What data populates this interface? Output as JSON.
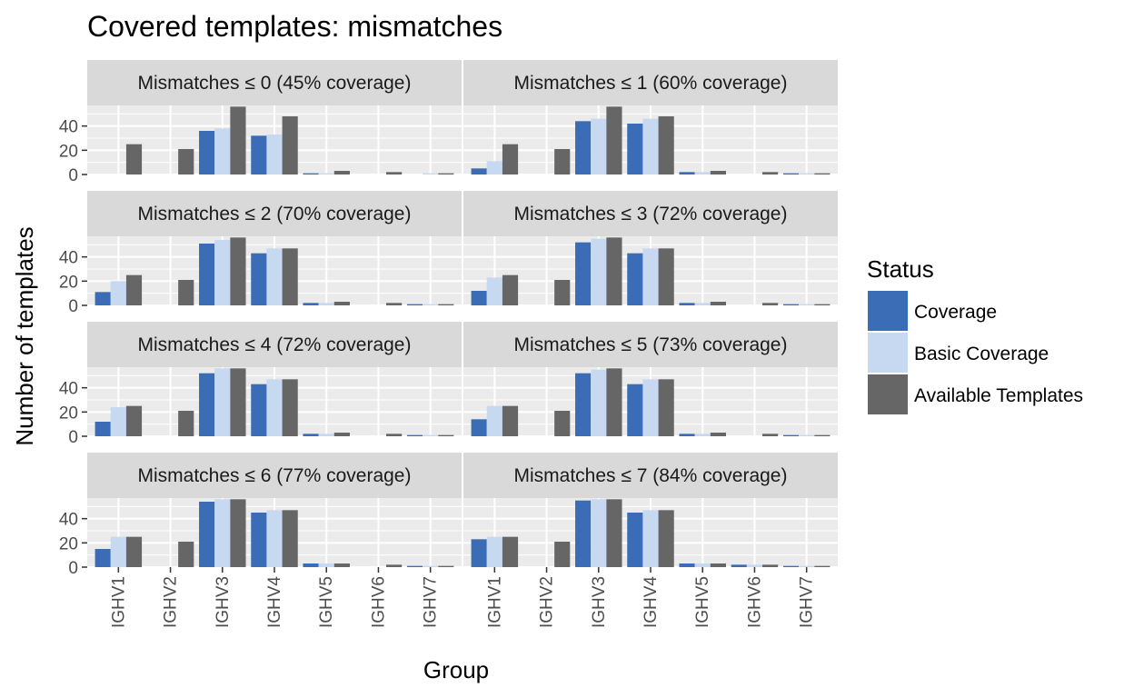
{
  "chart_data": {
    "type": "bar",
    "title": "Covered templates: mismatches",
    "xlabel": "Group",
    "ylabel": "Number of templates",
    "categories": [
      "IGHV1",
      "IGHV2",
      "IGHV3",
      "IGHV4",
      "IGHV5",
      "IGHV6",
      "IGHV7"
    ],
    "ylim": [
      0,
      57
    ],
    "yticks": [
      0,
      20,
      40
    ],
    "grid": true,
    "legend": {
      "title": "Status",
      "placement": "right",
      "entries": [
        {
          "name": "Coverage",
          "color": "#3a6db5"
        },
        {
          "name": "Basic Coverage",
          "color": "#c6d9f0"
        },
        {
          "name": "Available Templates",
          "color": "#666666"
        }
      ]
    },
    "panels": [
      {
        "label": "Mismatches ≤ 0 (45% coverage)",
        "series": [
          {
            "name": "Coverage",
            "values": [
              0,
              0,
              36,
              32,
              1,
              0,
              0
            ]
          },
          {
            "name": "Basic Coverage",
            "values": [
              0,
              0,
              38,
              33,
              1,
              0,
              1
            ]
          },
          {
            "name": "Available Templates",
            "values": [
              25,
              21,
              56,
              48,
              3,
              2,
              1
            ]
          }
        ]
      },
      {
        "label": "Mismatches ≤ 1 (60% coverage)",
        "series": [
          {
            "name": "Coverage",
            "values": [
              5,
              0,
              44,
              42,
              2,
              0,
              1
            ]
          },
          {
            "name": "Basic Coverage",
            "values": [
              11,
              0,
              46,
              46,
              2,
              0,
              1
            ]
          },
          {
            "name": "Available Templates",
            "values": [
              25,
              21,
              56,
              48,
              3,
              2,
              1
            ]
          }
        ]
      },
      {
        "label": "Mismatches ≤ 2 (70% coverage)",
        "series": [
          {
            "name": "Coverage",
            "values": [
              11,
              0,
              51,
              43,
              2,
              0,
              1
            ]
          },
          {
            "name": "Basic Coverage",
            "values": [
              20,
              0,
              54,
              47,
              2,
              0,
              1
            ]
          },
          {
            "name": "Available Templates",
            "values": [
              25,
              21,
              56,
              47,
              3,
              2,
              1
            ]
          }
        ]
      },
      {
        "label": "Mismatches ≤ 3 (72% coverage)",
        "series": [
          {
            "name": "Coverage",
            "values": [
              12,
              0,
              52,
              43,
              2,
              0,
              1
            ]
          },
          {
            "name": "Basic Coverage",
            "values": [
              23,
              0,
              55,
              47,
              2,
              0,
              1
            ]
          },
          {
            "name": "Available Templates",
            "values": [
              25,
              21,
              56,
              47,
              3,
              2,
              1
            ]
          }
        ]
      },
      {
        "label": "Mismatches ≤ 4 (72% coverage)",
        "series": [
          {
            "name": "Coverage",
            "values": [
              12,
              0,
              52,
              43,
              2,
              0,
              1
            ]
          },
          {
            "name": "Basic Coverage",
            "values": [
              24,
              0,
              56,
              47,
              2,
              0,
              1
            ]
          },
          {
            "name": "Available Templates",
            "values": [
              25,
              21,
              56,
              47,
              3,
              2,
              1
            ]
          }
        ]
      },
      {
        "label": "Mismatches ≤ 5 (73% coverage)",
        "series": [
          {
            "name": "Coverage",
            "values": [
              14,
              0,
              52,
              43,
              2,
              0,
              1
            ]
          },
          {
            "name": "Basic Coverage",
            "values": [
              25,
              0,
              55,
              47,
              2,
              0,
              1
            ]
          },
          {
            "name": "Available Templates",
            "values": [
              25,
              21,
              56,
              47,
              3,
              2,
              1
            ]
          }
        ]
      },
      {
        "label": "Mismatches ≤ 6 (77% coverage)",
        "series": [
          {
            "name": "Coverage",
            "values": [
              15,
              0,
              54,
              45,
              3,
              0,
              1
            ]
          },
          {
            "name": "Basic Coverage",
            "values": [
              25,
              0,
              56,
              47,
              3,
              0,
              1
            ]
          },
          {
            "name": "Available Templates",
            "values": [
              25,
              21,
              56,
              47,
              3,
              2,
              1
            ]
          }
        ]
      },
      {
        "label": "Mismatches ≤ 7 (84% coverage)",
        "series": [
          {
            "name": "Coverage",
            "values": [
              23,
              0,
              55,
              45,
              3,
              2,
              1
            ]
          },
          {
            "name": "Basic Coverage",
            "values": [
              25,
              0,
              56,
              47,
              3,
              2,
              1
            ]
          },
          {
            "name": "Available Templates",
            "values": [
              25,
              21,
              56,
              47,
              3,
              2,
              1
            ]
          }
        ]
      }
    ]
  }
}
